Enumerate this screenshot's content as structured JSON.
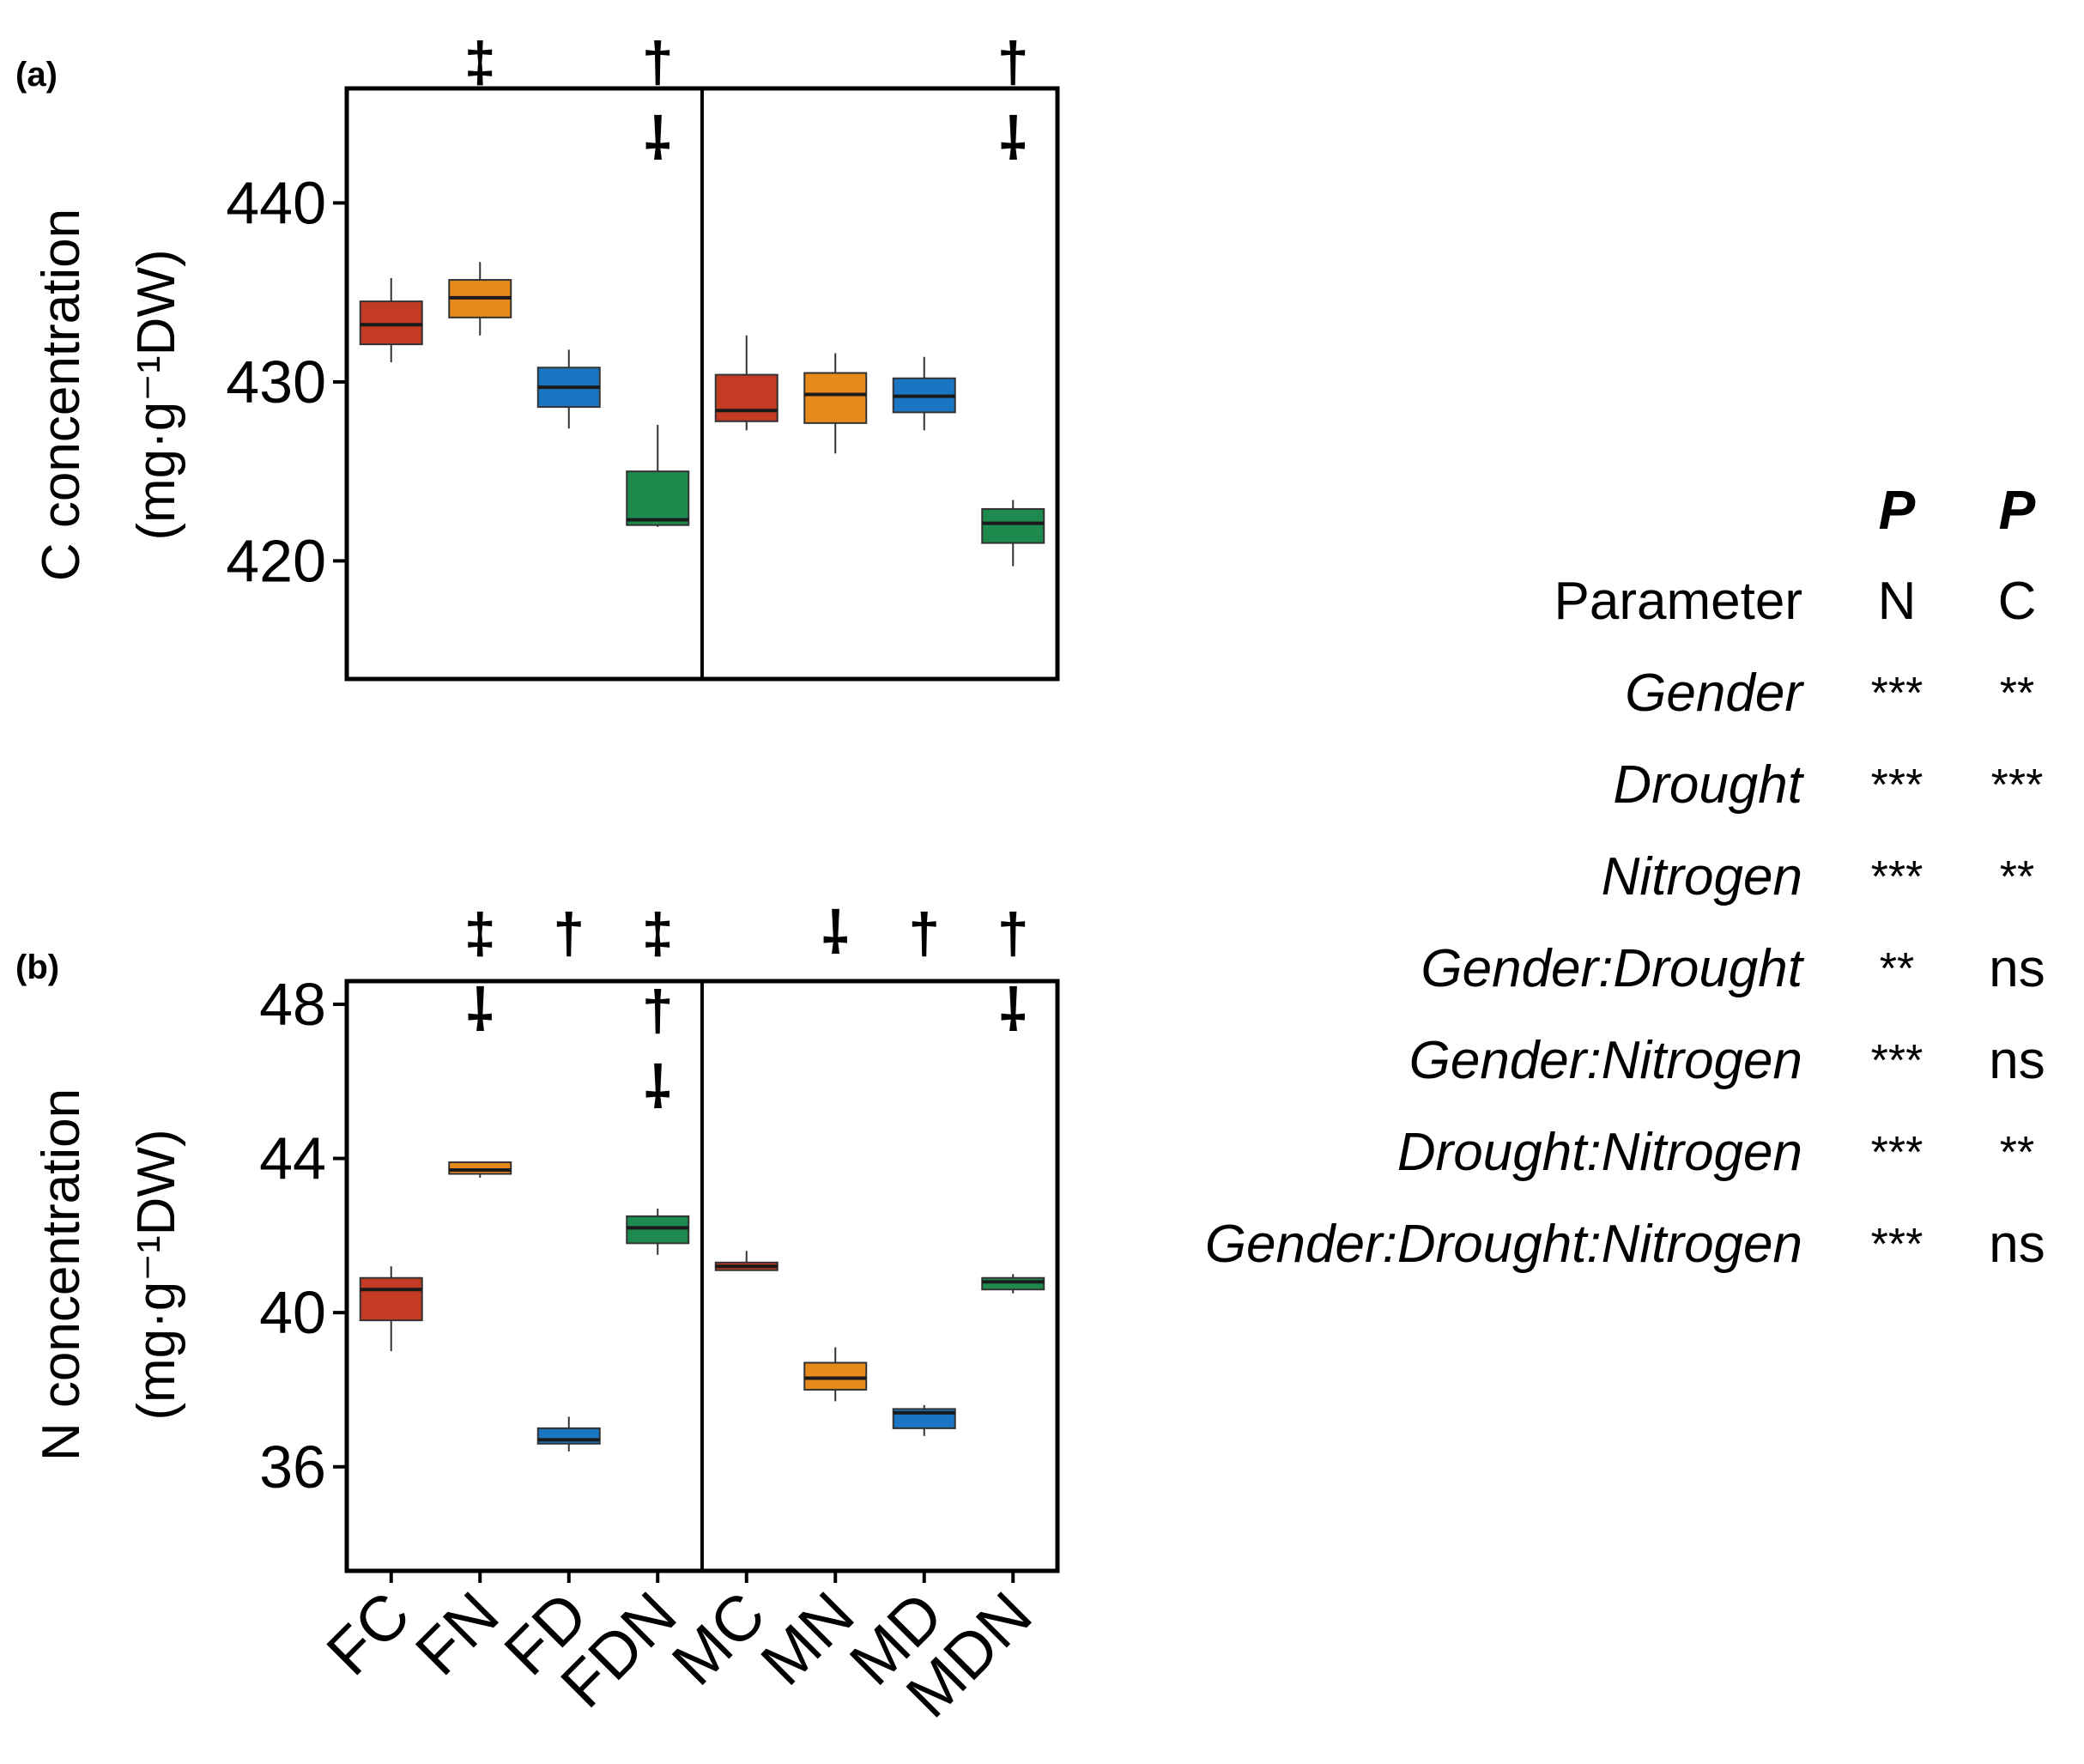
{
  "chart_data": [
    {
      "type": "box",
      "panel_label": "(a)",
      "ylabel_line1": "C concentration",
      "ylabel_unit": "(mg·g⁻¹DW)",
      "ylim": [
        413.4,
        446.4
      ],
      "yticks": [
        420,
        430,
        440
      ],
      "categories": [
        "FC",
        "FN",
        "FD",
        "FDN",
        "MC",
        "MN",
        "MD",
        "MDN"
      ],
      "colors": [
        "#c23b22",
        "#e8891c",
        "#1a76c2",
        "#1d8a4e",
        "#c23b22",
        "#e8891c",
        "#1a76c2",
        "#1d8a4e"
      ],
      "boxes": [
        {
          "min": 431.1,
          "q1": 432.1,
          "median": 433.2,
          "q3": 434.5,
          "max": 435.8
        },
        {
          "min": 432.6,
          "q1": 433.6,
          "median": 434.7,
          "q3": 435.7,
          "max": 436.7
        },
        {
          "min": 427.4,
          "q1": 428.6,
          "median": 429.7,
          "q3": 430.8,
          "max": 431.8
        },
        {
          "min": 421.9,
          "q1": 422.0,
          "median": 422.3,
          "q3": 425.0,
          "max": 427.6
        },
        {
          "min": 427.3,
          "q1": 427.8,
          "median": 428.4,
          "q3": 430.4,
          "max": 432.6
        },
        {
          "min": 426.0,
          "q1": 427.7,
          "median": 429.3,
          "q3": 430.5,
          "max": 431.6
        },
        {
          "min": 427.3,
          "q1": 428.3,
          "median": 429.2,
          "q3": 430.2,
          "max": 431.4
        },
        {
          "min": 419.7,
          "q1": 421.0,
          "median": 422.1,
          "q3": 422.9,
          "max": 423.4
        }
      ],
      "significance_marks": [
        {
          "category": "FN",
          "symbols": [
            "‡"
          ]
        },
        {
          "category": "FDN",
          "symbols": [
            "†",
            "⸸"
          ]
        },
        {
          "category": "MDN",
          "symbols": [
            "†",
            "⸸"
          ]
        }
      ]
    },
    {
      "type": "box",
      "panel_label": "(b)",
      "ylabel_line1": "N concentration",
      "ylabel_unit": "(mg·g⁻¹DW)",
      "ylim": [
        33.3,
        48.6
      ],
      "yticks": [
        36,
        40,
        44,
        48
      ],
      "categories": [
        "FC",
        "FN",
        "FD",
        "FDN",
        "MC",
        "MN",
        "MD",
        "MDN"
      ],
      "colors": [
        "#c23b22",
        "#e8891c",
        "#1a76c2",
        "#1d8a4e",
        "#c23b22",
        "#e8891c",
        "#1a76c2",
        "#1d8a4e"
      ],
      "boxes": [
        {
          "min": 39.0,
          "q1": 39.8,
          "median": 40.6,
          "q3": 40.9,
          "max": 41.2
        },
        {
          "min": 43.5,
          "q1": 43.6,
          "median": 43.7,
          "q3": 43.9,
          "max": 43.9
        },
        {
          "min": 36.4,
          "q1": 36.6,
          "median": 36.7,
          "q3": 37.0,
          "max": 37.3
        },
        {
          "min": 41.5,
          "q1": 41.8,
          "median": 42.2,
          "q3": 42.5,
          "max": 42.7
        },
        {
          "min": 41.1,
          "q1": 41.1,
          "median": 41.2,
          "q3": 41.3,
          "max": 41.6
        },
        {
          "min": 37.7,
          "q1": 38.0,
          "median": 38.3,
          "q3": 38.7,
          "max": 39.1
        },
        {
          "min": 36.8,
          "q1": 37.0,
          "median": 37.4,
          "q3": 37.5,
          "max": 37.6
        },
        {
          "min": 40.5,
          "q1": 40.6,
          "median": 40.8,
          "q3": 40.9,
          "max": 41.0
        }
      ],
      "significance_marks": [
        {
          "category": "FN",
          "symbols": [
            "‡",
            "⸸"
          ]
        },
        {
          "category": "FD",
          "symbols": [
            "†"
          ]
        },
        {
          "category": "FDN",
          "symbols": [
            "‡",
            "†",
            "⸸"
          ]
        },
        {
          "category": "MN",
          "symbols": [
            "⸸"
          ]
        },
        {
          "category": "MD",
          "symbols": [
            "†"
          ]
        },
        {
          "category": "MDN",
          "symbols": [
            "†",
            "⸸"
          ]
        }
      ]
    }
  ],
  "stats_table": {
    "p_header": [
      "P",
      "P"
    ],
    "columns": [
      "Parameter",
      "N",
      "C"
    ],
    "rows": [
      {
        "parameter": "Gender",
        "n": "***",
        "c": "**"
      },
      {
        "parameter": "Drought",
        "n": "***",
        "c": "***"
      },
      {
        "parameter": "Nitrogen",
        "n": "***",
        "c": "**"
      },
      {
        "parameter": "Gender:Drought",
        "n": "**",
        "c": "ns"
      },
      {
        "parameter": "Gender:Nitrogen",
        "n": "***",
        "c": "ns"
      },
      {
        "parameter": "Drought:Nitrogen",
        "n": "***",
        "c": "**"
      },
      {
        "parameter": "Gender:Drought:Nitrogen",
        "n": "***",
        "c": "ns"
      }
    ]
  }
}
